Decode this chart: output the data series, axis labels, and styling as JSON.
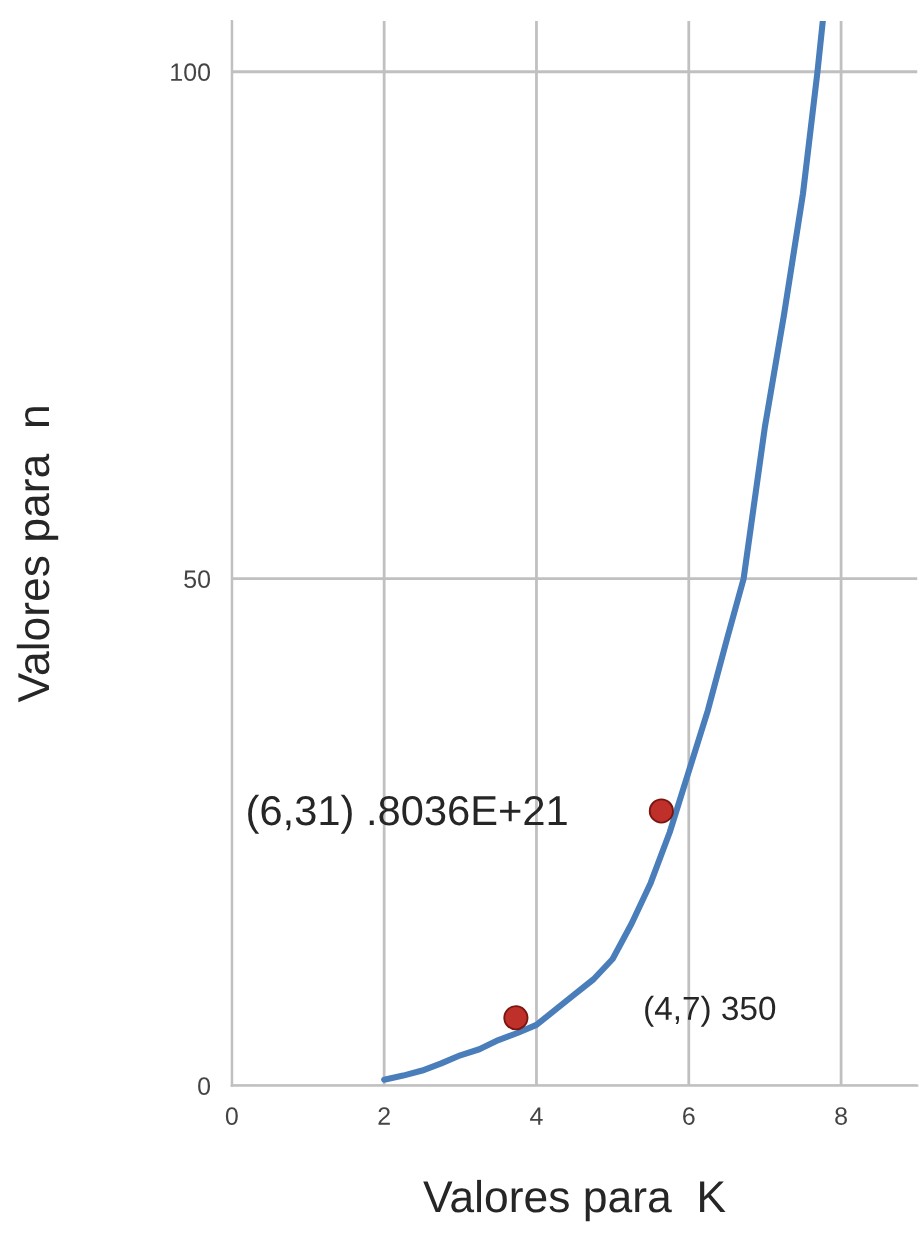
{
  "chart_data": {
    "type": "line",
    "xlabel": "Valores para  K",
    "ylabel": "Valores para  n",
    "xlim": [
      0,
      9
    ],
    "ylim": [
      0,
      105
    ],
    "xticks": [
      0,
      2,
      4,
      6,
      8
    ],
    "yticks": [
      0,
      50,
      100
    ],
    "grid": true,
    "line_style": "solid",
    "series": [
      {
        "color": "#4a7ebb",
        "marker": "none",
        "x": [
          2,
          2.25,
          2.5,
          2.75,
          3,
          3.25,
          3.5,
          3.75,
          4,
          4.25,
          4.5,
          4.75,
          5,
          5.25,
          5.5,
          5.75,
          6,
          6.25,
          6.5,
          6.72,
          7,
          7.25,
          7.5,
          7.69,
          7.76
        ],
        "values": [
          0.6,
          1,
          1.5,
          2.2,
          3,
          3.6,
          4.5,
          5.2,
          6,
          7.5,
          9,
          10.5,
          12.5,
          16,
          20,
          25,
          31,
          37,
          44,
          50,
          65,
          76,
          88,
          100,
          105
        ]
      },
      {
        "type": "scatter",
        "marker": "circle",
        "color": "#c0302a",
        "x": [
          3.73,
          5.64
        ],
        "values": [
          6.7,
          27.1
        ]
      }
    ],
    "annotations": [
      "(6,31) .8036E+21",
      "(4,7) 350"
    ]
  }
}
